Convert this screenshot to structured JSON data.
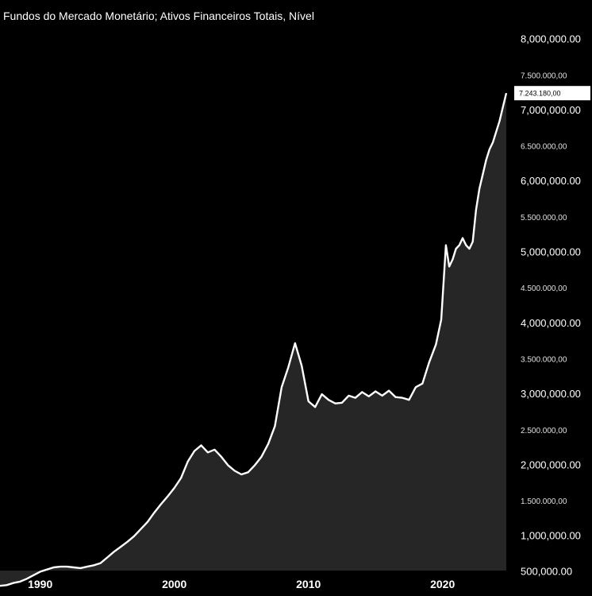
{
  "chart_data": {
    "type": "area",
    "title": "Fundos do Mercado Monetário; Ativos Financeiros Totais, Nível",
    "xlabel": "",
    "ylabel": "",
    "xlim": [
      1987.0,
      2025.0
    ],
    "ylim": [
      0,
      8000000
    ],
    "grid": false,
    "legend": "none",
    "y_ticks": [
      {
        "value": 500000,
        "label": "500,000.00",
        "major": true
      },
      {
        "value": 1000000,
        "label": "1,000,000.00",
        "major": true
      },
      {
        "value": 1500000,
        "label": "1.500.000,00",
        "major": false
      },
      {
        "value": 2000000,
        "label": "2,000,000.00",
        "major": true
      },
      {
        "value": 2500000,
        "label": "2.500.000,00",
        "major": false
      },
      {
        "value": 3000000,
        "label": "3,000,000.00",
        "major": true
      },
      {
        "value": 3500000,
        "label": "3.500.000,00",
        "major": false
      },
      {
        "value": 4000000,
        "label": "4,000,000.00",
        "major": true
      },
      {
        "value": 4500000,
        "label": "4.500.000,00",
        "major": false
      },
      {
        "value": 5000000,
        "label": "5,000,000.00",
        "major": true
      },
      {
        "value": 5500000,
        "label": "5.500.000,00",
        "major": false
      },
      {
        "value": 6000000,
        "label": "6,000,000.00",
        "major": true
      },
      {
        "value": 6500000,
        "label": "6.500.000,00",
        "major": false
      },
      {
        "value": 7000000,
        "label": "7,000,000.00",
        "major": true
      },
      {
        "value": 7500000,
        "label": "7.500.000,00",
        "major": false
      },
      {
        "value": 8000000,
        "label": "8,000,000.00",
        "major": true
      }
    ],
    "x_ticks": [
      {
        "value": 1990,
        "label": "1990"
      },
      {
        "value": 2000,
        "label": "2000"
      },
      {
        "value": 2010,
        "label": "2010"
      },
      {
        "value": 2020,
        "label": "2020"
      }
    ],
    "last_value_label": "7.243.180,00",
    "colors": {
      "line": "#ffffff",
      "fill": "#262626",
      "background": "#000000",
      "label_bg": "#ffffff"
    },
    "series": [
      {
        "x": [
          1987.0,
          1987.5,
          1988.0,
          1988.5,
          1989.0,
          1989.5,
          1990.0,
          1990.5,
          1991.0,
          1991.5,
          1992.0,
          1992.5,
          1993.0,
          1993.5,
          1994.0,
          1994.5,
          1995.0,
          1995.5,
          1996.0,
          1996.5,
          1997.0,
          1997.5,
          1998.0,
          1998.5,
          1999.0,
          1999.5,
          2000.0,
          2000.5,
          2001.0,
          2001.5,
          2002.0,
          2002.5,
          2003.0,
          2003.5,
          2004.0,
          2004.5,
          2005.0,
          2005.5,
          2006.0,
          2006.5,
          2007.0,
          2007.5,
          2008.0,
          2008.5,
          2009.0,
          2009.5,
          2010.0,
          2010.5,
          2011.0,
          2011.5,
          2012.0,
          2012.5,
          2013.0,
          2013.5,
          2014.0,
          2014.5,
          2015.0,
          2015.5,
          2016.0,
          2016.5,
          2017.0,
          2017.5,
          2018.0,
          2018.5,
          2019.0,
          2019.5,
          2019.9,
          2020.25,
          2020.5,
          2020.75,
          2021.0,
          2021.25,
          2021.5,
          2021.75,
          2022.0,
          2022.25,
          2022.5,
          2022.75,
          2023.0,
          2023.25,
          2023.5,
          2023.75,
          2024.0,
          2024.25,
          2024.5,
          2024.75
        ],
        "values": [
          300000,
          310000,
          340000,
          360000,
          400000,
          450000,
          500000,
          530000,
          560000,
          570000,
          570000,
          560000,
          550000,
          570000,
          590000,
          620000,
          700000,
          780000,
          850000,
          920000,
          1000000,
          1100000,
          1200000,
          1330000,
          1450000,
          1560000,
          1680000,
          1820000,
          2050000,
          2200000,
          2280000,
          2180000,
          2220000,
          2120000,
          2000000,
          1920000,
          1870000,
          1900000,
          2000000,
          2120000,
          2300000,
          2550000,
          3100000,
          3380000,
          3720000,
          3400000,
          2900000,
          2820000,
          3000000,
          2920000,
          2870000,
          2880000,
          2980000,
          2950000,
          3030000,
          2970000,
          3040000,
          2980000,
          3050000,
          2960000,
          2950000,
          2920000,
          3100000,
          3150000,
          3450000,
          3700000,
          4050000,
          5100000,
          4800000,
          4900000,
          5050000,
          5100000,
          5200000,
          5100000,
          5050000,
          5150000,
          5600000,
          5900000,
          6100000,
          6300000,
          6450000,
          6550000,
          6700000,
          6850000,
          7050000,
          7243180
        ]
      }
    ]
  }
}
